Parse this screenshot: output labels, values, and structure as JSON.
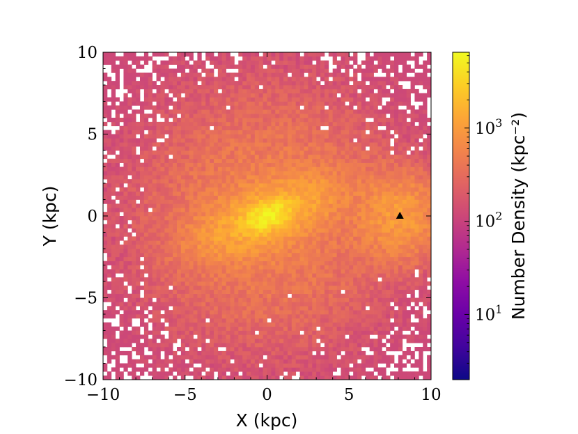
{
  "chart_data": {
    "type": "heatmap",
    "title": "",
    "xlabel": "X (kpc)",
    "ylabel": "Y (kpc)",
    "xlim": [
      -10,
      10
    ],
    "ylim": [
      -10,
      10
    ],
    "xticks": [
      -10,
      -5,
      0,
      5,
      10
    ],
    "yticks": [
      -10,
      -5,
      0,
      5,
      10
    ],
    "xtick_labels": [
      "−10",
      "−5",
      "0",
      "5",
      "10"
    ],
    "ytick_labels": [
      "−10",
      "−5",
      "0",
      "5",
      "10"
    ],
    "bins": 80,
    "colormap": "plasma",
    "log_scale": true,
    "grid": false,
    "colorbar": {
      "label": "Number Density (kpc⁻²)",
      "range": [
        2,
        6500
      ],
      "tick_values": [
        10,
        100,
        1000
      ],
      "tick_labels": [
        {
          "base": "10",
          "exp": "1"
        },
        {
          "base": "10",
          "exp": "2"
        },
        {
          "base": "10",
          "exp": "3"
        }
      ]
    },
    "density_peaks": [
      {
        "x": 0.0,
        "y": 0.0,
        "value": 5000
      },
      {
        "x": 8.1,
        "y": 0.0,
        "value": 300
      }
    ],
    "bar_major_axis_angle_deg": 22,
    "marker": {
      "x": 8.1,
      "y": 0.0,
      "shape": "triangle",
      "color": "#000000"
    }
  }
}
